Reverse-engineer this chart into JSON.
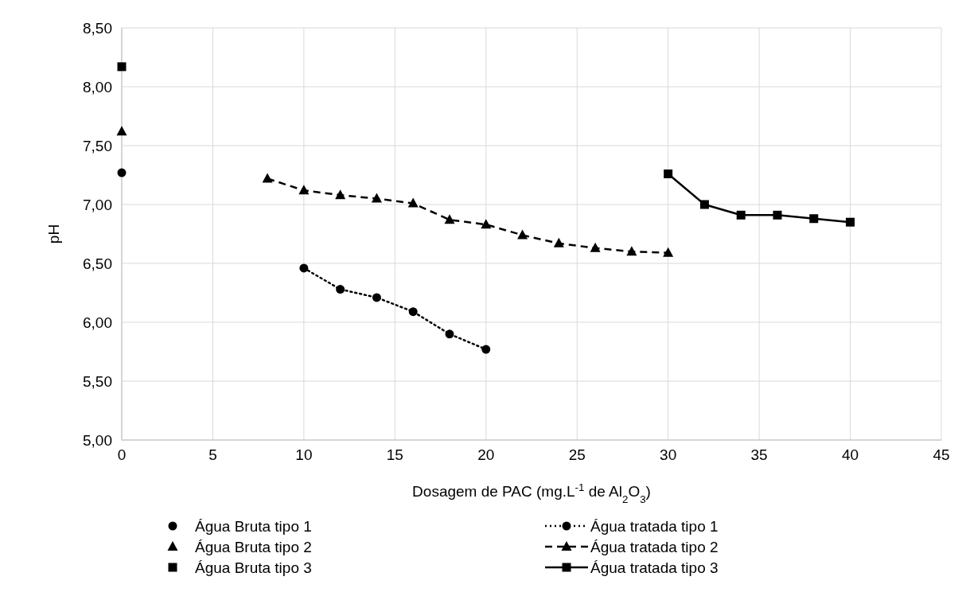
{
  "chart_data": {
    "type": "line",
    "xlabel": "Dosagem de PAC (mg.L$^{-1}$ de Al$_{2}$O$_{3}$)",
    "ylabel": "pH",
    "xlim": [
      0,
      45
    ],
    "xticks": [
      0,
      5,
      10,
      15,
      20,
      25,
      30,
      35,
      40,
      45
    ],
    "ylim": [
      5,
      8.5
    ],
    "yticks": [
      {
        "value": 5,
        "label": "5,00"
      },
      {
        "value": 5.5,
        "label": "5,50"
      },
      {
        "value": 6,
        "label": "6,00"
      },
      {
        "value": 6.5,
        "label": "6,50"
      },
      {
        "value": 7,
        "label": "7,00"
      },
      {
        "value": 7.5,
        "label": "7,50"
      },
      {
        "value": 8,
        "label": "8,00"
      },
      {
        "value": 8.5,
        "label": "8,50"
      }
    ],
    "grid": true,
    "legend": "bottom",
    "series": [
      {
        "name": "Água Bruta tipo 1",
        "type": "scatter",
        "marker": "circle",
        "color": "#000000",
        "x": [
          0
        ],
        "values": [
          7.27
        ]
      },
      {
        "name": "Água tratada tipo 1",
        "marker": "circle",
        "line_style": "dotted",
        "color": "#000000",
        "x": [
          10,
          12,
          14,
          16,
          18,
          20
        ],
        "values": [
          6.46,
          6.28,
          6.21,
          6.09,
          5.9,
          5.77
        ]
      },
      {
        "name": "Água Bruta tipo 2",
        "type": "scatter",
        "marker": "triangle",
        "color": "#000000",
        "x": [
          0
        ],
        "values": [
          7.62
        ]
      },
      {
        "name": "Água tratada tipo 2",
        "marker": "triangle",
        "line_style": "dashed",
        "color": "#000000",
        "x": [
          8,
          10,
          12,
          14,
          16,
          18,
          20,
          22,
          24,
          26,
          28,
          30
        ],
        "values": [
          7.22,
          7.12,
          7.08,
          7.05,
          7.01,
          6.87,
          6.83,
          6.74,
          6.67,
          6.63,
          6.6,
          6.59
        ]
      },
      {
        "name": "Água Bruta tipo 3",
        "type": "scatter",
        "marker": "square",
        "color": "#000000",
        "x": [
          0
        ],
        "values": [
          8.17
        ]
      },
      {
        "name": "Água tratada tipo 3",
        "marker": "square",
        "line_style": "solid",
        "color": "#000000",
        "x": [
          30,
          32,
          34,
          36,
          38,
          40
        ],
        "values": [
          7.26,
          7.0,
          6.91,
          6.91,
          6.88,
          6.85
        ]
      }
    ]
  }
}
